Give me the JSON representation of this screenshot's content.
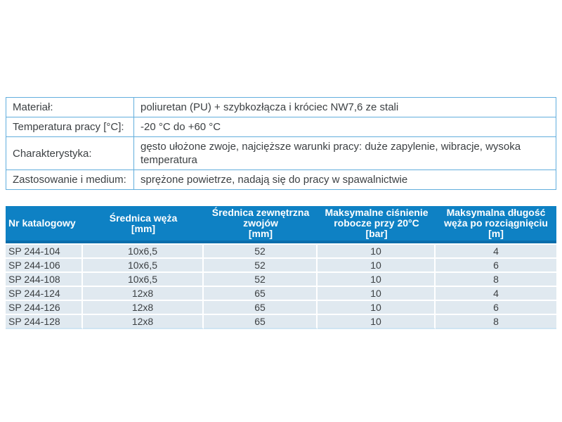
{
  "colors": {
    "header_bg": "#0e81c4",
    "header_bottom_strip": "#0a6dab",
    "row_bg": "#e0e9f0",
    "row_separator": "#ffffff",
    "spec_border": "#62aedd",
    "text": "#3c4043",
    "header_text": "#ffffff"
  },
  "spec_table": {
    "rows": [
      {
        "label": "Materiał:",
        "value": "poliuretan (PU) + szybkozłącza i króciec NW7,6 ze stali"
      },
      {
        "label": "Temperatura pracy [°C]:",
        "value": "-20 °C do +60 °C"
      },
      {
        "label": "Charakterystyka:",
        "value": "gęsto ułożone zwoje, najcięższe warunki pracy: duże zapylenie, wibracje, wysoka temperatura"
      },
      {
        "label": "Zastosowanie i medium:",
        "value": "sprężone powietrze, nadają się do pracy w spawalnictwie"
      }
    ]
  },
  "product_table": {
    "columns": [
      {
        "lines": [
          "Nr katalogowy"
        ]
      },
      {
        "lines": [
          "Średnica węża",
          "[mm]"
        ]
      },
      {
        "lines": [
          "Średnica zewnętrzna",
          "zwojów",
          "[mm]"
        ]
      },
      {
        "lines": [
          "Maksymalne ciśnienie",
          "robocze przy 20°C",
          "[bar]"
        ]
      },
      {
        "lines": [
          "Maksymalna długość",
          "węża po rozciągnięciu",
          "[m]"
        ]
      }
    ],
    "rows": [
      [
        "SP 244-104",
        "10x6,5",
        "52",
        "10",
        "4"
      ],
      [
        "SP 244-106",
        "10x6,5",
        "52",
        "10",
        "6"
      ],
      [
        "SP 244-108",
        "10x6,5",
        "52",
        "10",
        "8"
      ],
      [
        "SP 244-124",
        "12x8",
        "65",
        "10",
        "4"
      ],
      [
        "SP 244-126",
        "12x8",
        "65",
        "10",
        "6"
      ],
      [
        "SP 244-128",
        "12x8",
        "65",
        "10",
        "8"
      ]
    ]
  }
}
